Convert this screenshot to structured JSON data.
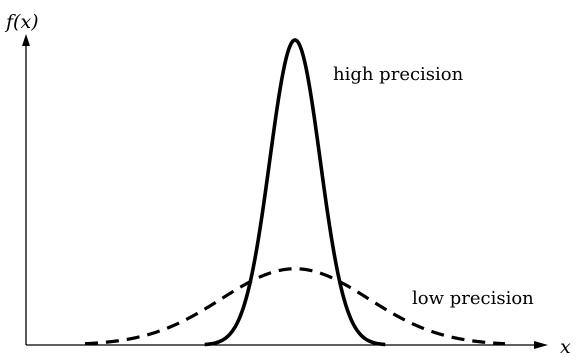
{
  "chart_data": {
    "type": "line",
    "title": "",
    "xlabel": "x",
    "ylabel": "f(x)",
    "grid": false,
    "x_ticks": false,
    "y_ticks": false,
    "xlim": [
      -5,
      5
    ],
    "ylim": [
      0,
      1.05
    ],
    "series": [
      {
        "name": "high precision",
        "style": "solid",
        "mean": 0,
        "sd": 0.6,
        "peak": 1.0,
        "color": "#000000"
      },
      {
        "name": "low precision",
        "style": "dashed",
        "mean": 0,
        "sd": 1.75,
        "peak": 0.25,
        "color": "#000000"
      }
    ]
  }
}
